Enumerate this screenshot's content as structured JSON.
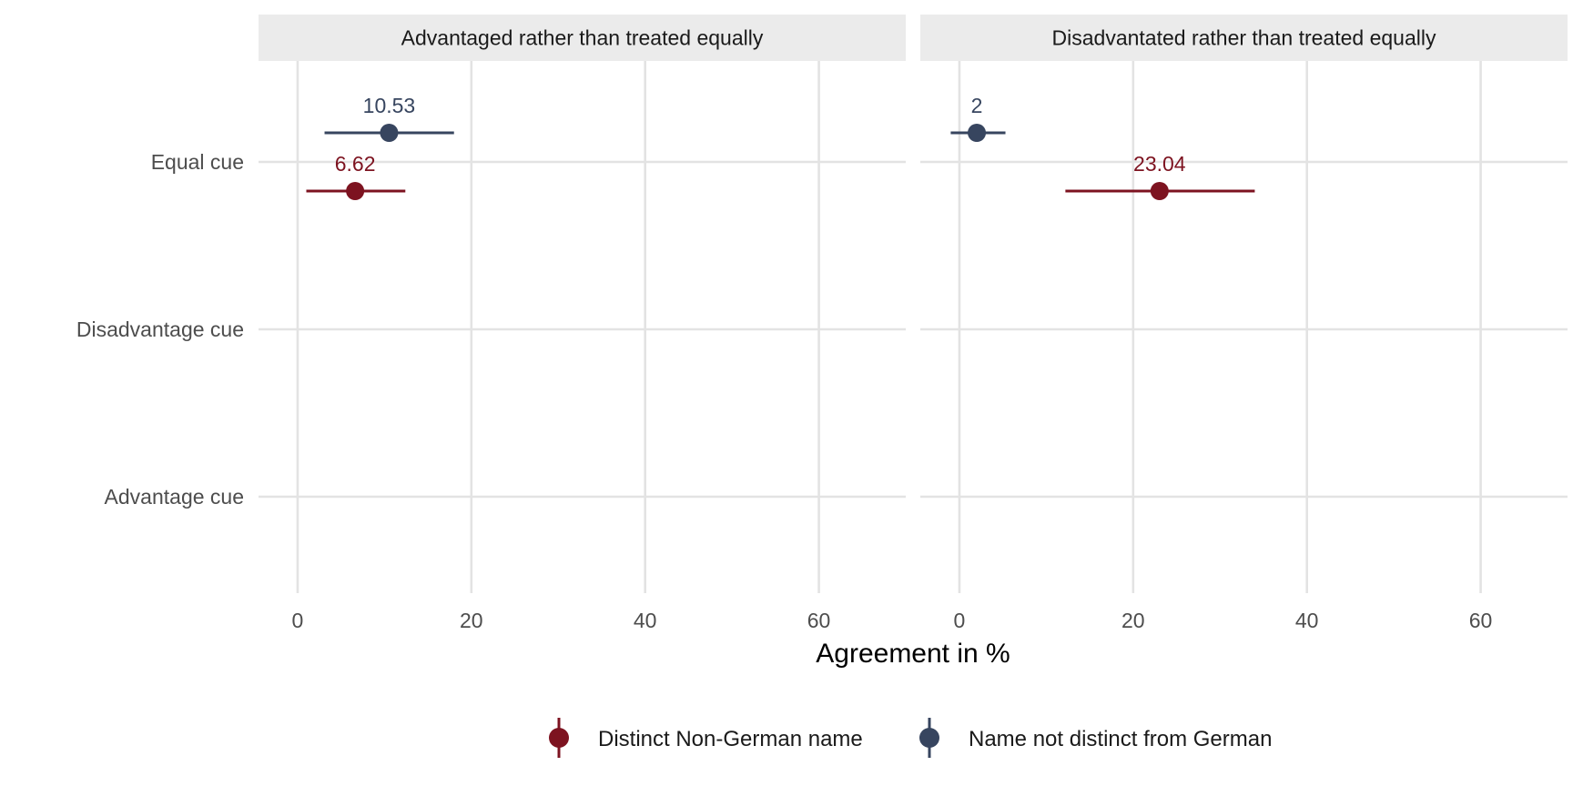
{
  "chart_data": {
    "type": "scatter",
    "subtype": "point-range faceted",
    "xlabel": "Agreement in %",
    "ylabel": "",
    "xlim": [
      -4.5,
      70
    ],
    "x_ticks": [
      0,
      20,
      40,
      60
    ],
    "x_tick_labels": [
      "0",
      "20",
      "40",
      "60"
    ],
    "categories": [
      "Equal cue",
      "Disadvantage cue",
      "Advantage cue"
    ],
    "grid": true,
    "legend_position": "bottom",
    "facets": [
      {
        "title": "Advantaged rather than treated equally",
        "points": [
          {
            "series": "Name not distinct from German",
            "category": "Equal cue",
            "value": 10.53,
            "label": "10.53",
            "ci": [
              3.1,
              18.0
            ]
          },
          {
            "series": "Distinct Non-German name",
            "category": "Equal cue",
            "value": 6.62,
            "label": "6.62",
            "ci": [
              1.0,
              12.4
            ]
          }
        ]
      },
      {
        "title": "Disadvantated rather than treated equally",
        "points": [
          {
            "series": "Name not distinct from German",
            "category": "Equal cue",
            "value": 2,
            "label": "2",
            "ci": [
              -1.0,
              5.3
            ]
          },
          {
            "series": "Distinct Non-German name",
            "category": "Equal cue",
            "value": 23.04,
            "label": "23.04",
            "ci": [
              12.2,
              34.0
            ]
          }
        ]
      }
    ],
    "series": [
      {
        "name": "Distinct Non-German name",
        "color": "#7d1320"
      },
      {
        "name": "Name not distinct from German",
        "color": "#37455f"
      }
    ]
  }
}
